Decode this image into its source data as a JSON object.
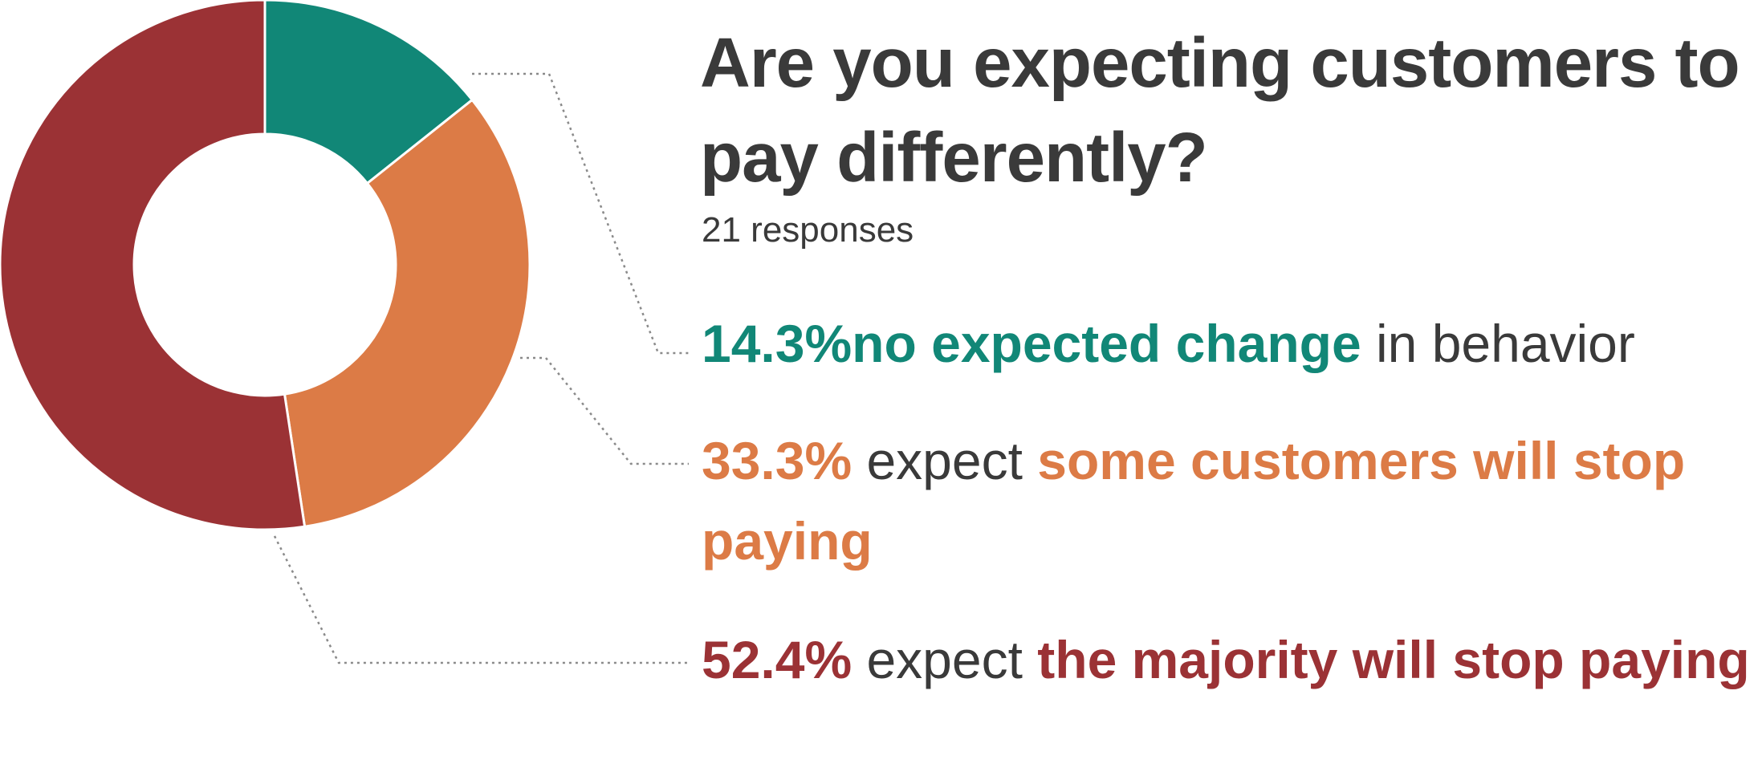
{
  "chart_data": {
    "type": "pie",
    "title": "Are you expecting customers to pay differently?",
    "subtitle": "21 responses",
    "slices": [
      {
        "label": "no expected change in behavior",
        "value": 14.3,
        "color": "#118777"
      },
      {
        "label": "expect some customers will stop paying",
        "value": 33.3,
        "color": "#DC7B46"
      },
      {
        "label": "expect the majority will stop paying",
        "value": 52.4,
        "color": "#9B3235"
      }
    ]
  },
  "annotations": [
    {
      "pct": "14.3%",
      "mid": "",
      "highlight": "no expected change",
      "rest": " in behavior"
    },
    {
      "pct": "33.3%",
      "mid": " expect ",
      "highlight": "some customers will stop paying",
      "rest": ""
    },
    {
      "pct": "52.4%",
      "mid": " expect ",
      "highlight": "the majority will stop paying",
      "rest": ""
    }
  ],
  "colors": {
    "text": "#3a3a3a",
    "leader": "#8a8a8a"
  }
}
